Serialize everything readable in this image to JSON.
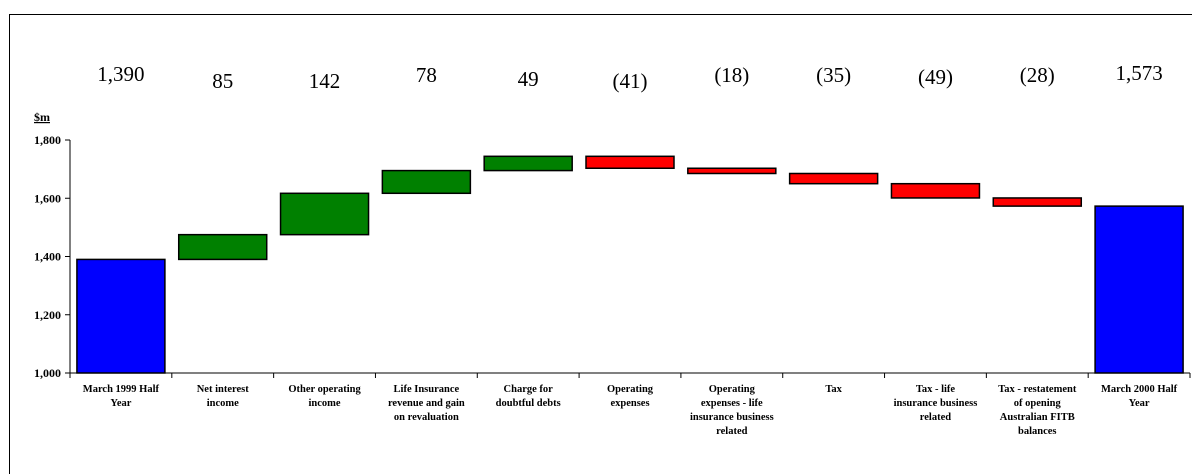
{
  "chart_data": {
    "type": "bar",
    "subtype": "waterfall",
    "ylabel": "$m",
    "ylim": [
      1000,
      1800
    ],
    "yticks": [
      "1,000",
      "1,200",
      "1,400",
      "1,600",
      "1,800"
    ],
    "ytick_values": [
      1000,
      1200,
      1400,
      1600,
      1800
    ],
    "grid": false,
    "colors": {
      "total": "#0000FF",
      "increase": "#008000",
      "decrease": "#FF0000"
    },
    "categories": [
      [
        "March 1999 Half",
        "Year"
      ],
      [
        "Net interest",
        "income"
      ],
      [
        "Other operating",
        "income"
      ],
      [
        "Life Insurance",
        "revenue and gain",
        "on revaluation"
      ],
      [
        "Charge for",
        "doubtful debts"
      ],
      [
        "Operating",
        "expenses"
      ],
      [
        "Operating",
        "expenses - life",
        "insurance business",
        "related"
      ],
      [
        "Tax"
      ],
      [
        "Tax - life",
        "insurance business",
        "related"
      ],
      [
        "Tax - restatement",
        "of opening",
        "Australian FITB",
        "balances"
      ],
      [
        "March 2000 Half",
        "Year"
      ]
    ],
    "bars": [
      {
        "kind": "total",
        "start": 1000,
        "end": 1390,
        "label": "1,390"
      },
      {
        "kind": "increase",
        "start": 1390,
        "end": 1475,
        "label": "85"
      },
      {
        "kind": "increase",
        "start": 1475,
        "end": 1617,
        "label": "142"
      },
      {
        "kind": "increase",
        "start": 1617,
        "end": 1695,
        "label": "78"
      },
      {
        "kind": "increase",
        "start": 1695,
        "end": 1744,
        "label": "49"
      },
      {
        "kind": "decrease",
        "start": 1744,
        "end": 1703,
        "label": "(41)"
      },
      {
        "kind": "decrease",
        "start": 1703,
        "end": 1685,
        "label": "(18)"
      },
      {
        "kind": "decrease",
        "start": 1685,
        "end": 1650,
        "label": "(35)"
      },
      {
        "kind": "decrease",
        "start": 1650,
        "end": 1601,
        "label": "(49)"
      },
      {
        "kind": "decrease",
        "start": 1601,
        "end": 1573,
        "label": "(28)"
      },
      {
        "kind": "total",
        "start": 1000,
        "end": 1573,
        "label": "1,573"
      }
    ]
  }
}
